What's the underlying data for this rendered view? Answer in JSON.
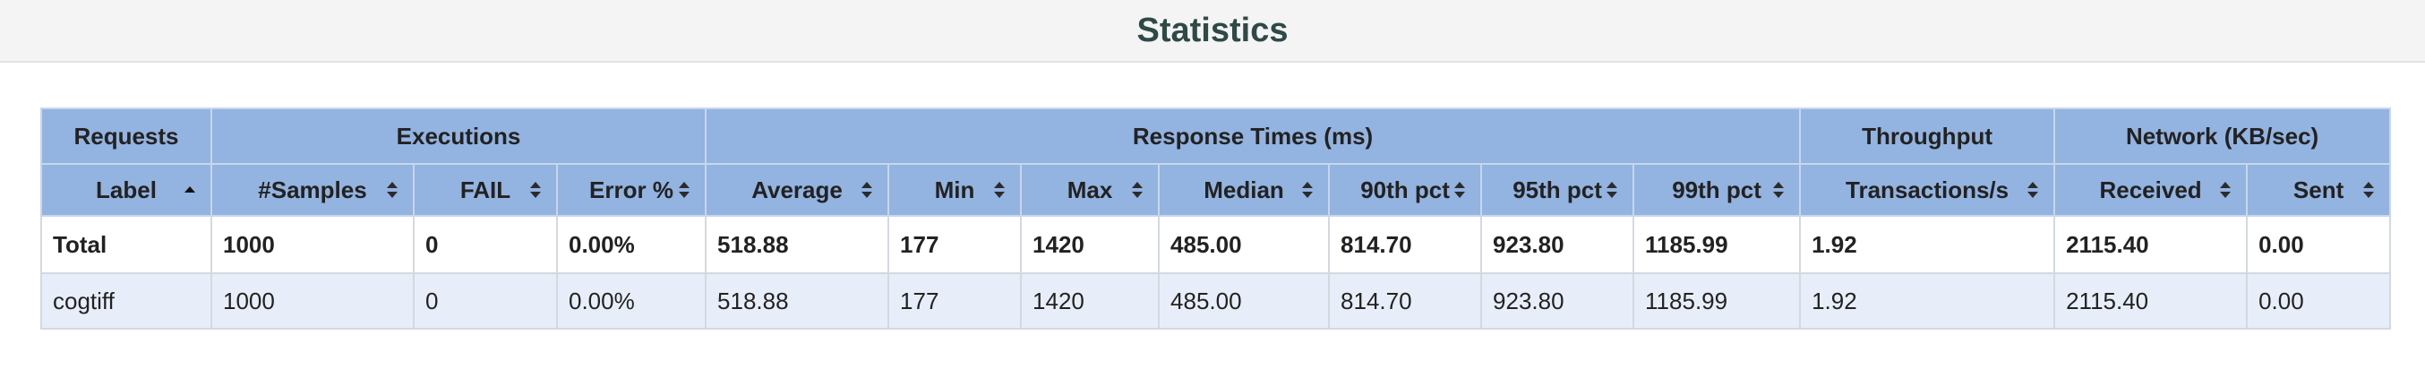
{
  "page": {
    "title": "Statistics"
  },
  "table": {
    "groups": [
      {
        "label": "Requests",
        "span": 1
      },
      {
        "label": "Executions",
        "span": 3
      },
      {
        "label": "Response Times (ms)",
        "span": 7
      },
      {
        "label": "Throughput",
        "span": 1
      },
      {
        "label": "Network (KB/sec)",
        "span": 2
      }
    ],
    "columns": [
      {
        "label": "Label",
        "sort": "asc"
      },
      {
        "label": "#Samples",
        "sort": "both"
      },
      {
        "label": "FAIL",
        "sort": "both"
      },
      {
        "label": "Error %",
        "sort": "both"
      },
      {
        "label": "Average",
        "sort": "both"
      },
      {
        "label": "Min",
        "sort": "both"
      },
      {
        "label": "Max",
        "sort": "both"
      },
      {
        "label": "Median",
        "sort": "both"
      },
      {
        "label": "90th pct",
        "sort": "both"
      },
      {
        "label": "95th pct",
        "sort": "both"
      },
      {
        "label": "99th pct",
        "sort": "both"
      },
      {
        "label": "Transactions/s",
        "sort": "both"
      },
      {
        "label": "Received",
        "sort": "both"
      },
      {
        "label": "Sent",
        "sort": "both"
      }
    ],
    "total_row": [
      "Total",
      "1000",
      "0",
      "0.00%",
      "518.88",
      "177",
      "1420",
      "485.00",
      "814.70",
      "923.80",
      "1185.99",
      "1.92",
      "2115.40",
      "0.00"
    ],
    "rows": [
      [
        "cogtiff",
        "1000",
        "0",
        "0.00%",
        "518.88",
        "177",
        "1420",
        "485.00",
        "814.70",
        "923.80",
        "1185.99",
        "1.92",
        "2115.40",
        "0.00"
      ]
    ]
  },
  "icons": {
    "sort_asc": "sort-ascending-icon",
    "sort_both": "sort-both-icon"
  },
  "colors": {
    "header_bg": "#93b3e0",
    "title": "#2e4a47",
    "alt_row": "#e8eef9"
  }
}
